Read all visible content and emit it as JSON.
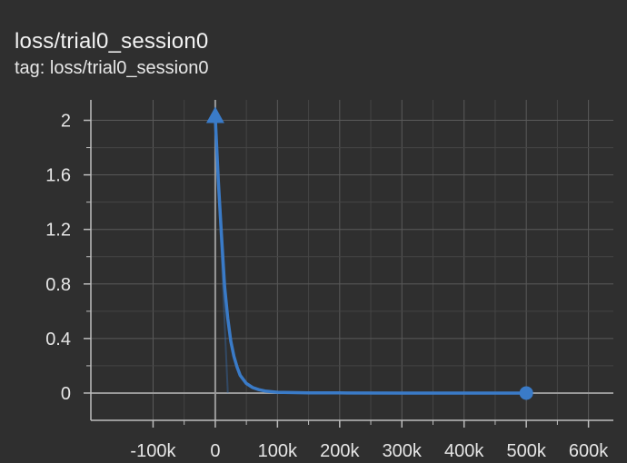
{
  "card": {
    "title": "loss/trial0_session0",
    "tag": "tag: loss/trial0_session0"
  },
  "colors": {
    "background": "#2f2f2f",
    "grid": "#5a5a5a",
    "axis": "#9a9a9a",
    "series": "#3a7bc8"
  },
  "chart_data": {
    "type": "line",
    "title": "loss/trial0_session0",
    "xlabel": "",
    "ylabel": "",
    "xlim": [
      -200000,
      640000
    ],
    "ylim": [
      -0.2,
      2.15
    ],
    "grid": true,
    "x_ticks": [
      -100000,
      0,
      100000,
      200000,
      300000,
      400000,
      500000,
      600000
    ],
    "x_tick_labels": [
      "-100k",
      "0",
      "100k",
      "200k",
      "300k",
      "400k",
      "500k",
      "600k"
    ],
    "y_ticks": [
      0,
      0.4,
      0.8,
      1.2,
      1.6,
      2
    ],
    "y_tick_labels": [
      "0",
      "0.4",
      "0.8",
      "1.2",
      "1.6",
      "2"
    ],
    "series": [
      {
        "name": "",
        "x": [
          0,
          5000,
          10000,
          15000,
          20000,
          25000,
          30000,
          35000,
          40000,
          50000,
          60000,
          70000,
          80000,
          100000,
          150000,
          200000,
          300000,
          400000,
          500000
        ],
        "y": [
          2.02,
          1.55,
          1.15,
          0.78,
          0.55,
          0.38,
          0.27,
          0.19,
          0.13,
          0.07,
          0.04,
          0.025,
          0.015,
          0.006,
          0.002,
          0.001,
          0.0,
          0.0,
          0.0
        ]
      }
    ],
    "start_marker": "triangle",
    "end_marker": "circle"
  }
}
